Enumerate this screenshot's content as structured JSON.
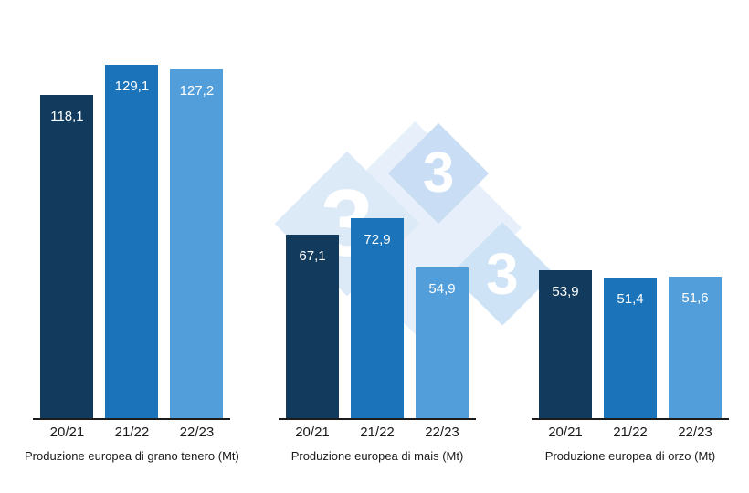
{
  "chart_data": {
    "type": "bar",
    "title": "",
    "categories": [
      "20/21",
      "21/22",
      "22/23"
    ],
    "series_colors": [
      "#123a5c",
      "#1b74ba",
      "#529eda"
    ],
    "value_label_color": "#ffffff",
    "groups": [
      {
        "title": "Produzione europea di grano tenero (Mt)",
        "values": [
          118.1,
          129.1,
          127.2
        ],
        "labels": [
          "118,1",
          "129,1",
          "127,2"
        ]
      },
      {
        "title": "Produzione europea di mais (Mt)",
        "values": [
          67.1,
          72.9,
          54.9
        ],
        "labels": [
          "67,1",
          "72,9",
          "54,9"
        ]
      },
      {
        "title": "Produzione europea di orzo (Mt)",
        "values": [
          53.9,
          51.4,
          51.6
        ],
        "labels": [
          "53,9",
          "51,4",
          "51,6"
        ]
      }
    ],
    "ylim": [
      0,
      135
    ],
    "grid": false,
    "legend": false
  },
  "watermark": {
    "digits": [
      "3",
      "3",
      "3"
    ]
  }
}
